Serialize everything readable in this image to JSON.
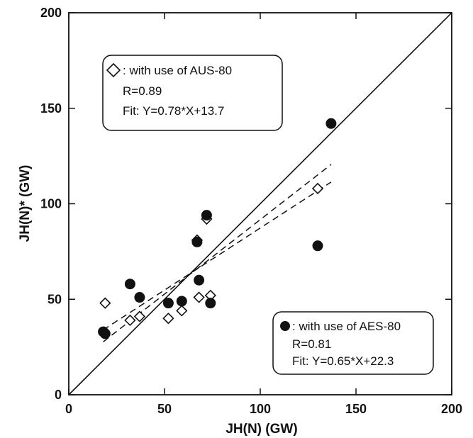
{
  "chart_data": {
    "type": "scatter",
    "xlabel": "JH(N) (GW)",
    "ylabel": "JH(N)* (GW)",
    "xlim": [
      0,
      200
    ],
    "ylim": [
      0,
      200
    ],
    "xticks": [
      0,
      50,
      100,
      150,
      200
    ],
    "yticks": [
      0,
      50,
      100,
      150,
      200
    ],
    "xtick_labels": [
      "0",
      "50",
      "100",
      "150",
      "200"
    ],
    "ytick_labels": [
      "0",
      "50",
      "100",
      "150",
      "200"
    ],
    "grid": false,
    "reference_line": {
      "type": "y=x"
    },
    "series": [
      {
        "marker": "open-diamond",
        "color": "#111111",
        "legend": {
          "label": ": with use of AUS-80",
          "stat": "R=0.89",
          "fit_text": "Fit: Y=0.78*X+13.7",
          "placement": "top-left"
        },
        "fit": {
          "slope": 0.78,
          "intercept": 13.7,
          "x_range": [
            18,
            137
          ]
        },
        "x": [
          19,
          32,
          37,
          52,
          59,
          67,
          68,
          72,
          74,
          130
        ],
        "y": [
          48,
          39,
          41,
          40,
          44,
          81,
          51,
          92,
          52,
          108
        ]
      },
      {
        "marker": "filled-circle",
        "color": "#111111",
        "legend": {
          "label": ": with use of AES-80",
          "stat": "R=0.81",
          "fit_text": "Fit: Y=0.65*X+22.3",
          "placement": "bottom-right"
        },
        "fit": {
          "slope": 0.65,
          "intercept": 22.3,
          "x_range": [
            18,
            137
          ]
        },
        "x": [
          18,
          19,
          32,
          37,
          52,
          59,
          67,
          68,
          72,
          74,
          130,
          137
        ],
        "y": [
          33,
          32,
          58,
          51,
          48,
          49,
          80,
          60,
          94,
          48,
          78,
          142
        ]
      }
    ]
  }
}
